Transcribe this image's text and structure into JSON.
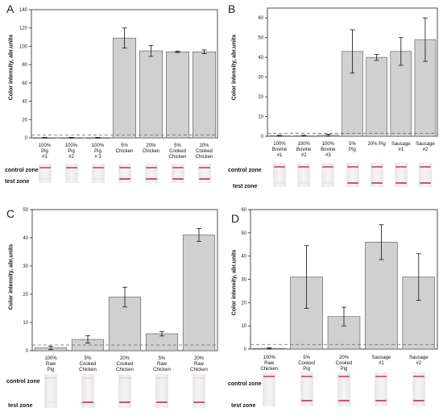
{
  "zone_labels": {
    "control": "control zone",
    "test": "test zone"
  },
  "colors": {
    "bar": "#d0d0d0",
    "bar_stroke": "#555555",
    "axis": "#222222",
    "dash": "#666666",
    "band": "#c24e6c"
  },
  "chart_data": [
    {
      "panel": "A",
      "type": "bar",
      "ylabel": "Color intensity, abr.units",
      "ylim": [
        0,
        140
      ],
      "yticks": [
        0,
        20,
        40,
        60,
        80,
        100,
        120,
        140
      ],
      "threshold": 3,
      "categories": [
        [
          "100%",
          "Pig",
          "#1"
        ],
        [
          "100%",
          "Pig",
          "#2"
        ],
        [
          "100%",
          "Pig",
          "# 3"
        ],
        [
          "5%",
          "Chicken"
        ],
        [
          "20%",
          "Chicken"
        ],
        [
          "5%",
          "Cooked",
          "Chicken"
        ],
        [
          "20%",
          "Cooked",
          "Chicken"
        ]
      ],
      "values": [
        0,
        0,
        0,
        109,
        95,
        94,
        94
      ],
      "errors": [
        0.5,
        0.5,
        0.5,
        11,
        6,
        0.8,
        2
      ],
      "strips": {
        "control": [
          1,
          1,
          1,
          1,
          1,
          1,
          1
        ],
        "test": [
          0,
          0,
          0,
          1,
          1,
          1,
          1
        ]
      }
    },
    {
      "panel": "B",
      "type": "bar",
      "ylabel": "Color intensity, abr.units",
      "ylim": [
        0,
        65
      ],
      "yticks": [
        0,
        10,
        20,
        30,
        40,
        50,
        60
      ],
      "threshold": 1.5,
      "categories": [
        [
          "100%",
          "Bovine",
          "#1"
        ],
        [
          "100%",
          "Bovine",
          "#2"
        ],
        [
          "100%",
          "Bovine",
          "#3"
        ],
        [
          "5%",
          "Pig"
        ],
        [
          "20% Pig"
        ],
        [
          "Sausage",
          "#1"
        ],
        [
          "Sausage",
          "#2"
        ]
      ],
      "values": [
        0.2,
        0.2,
        0.5,
        43,
        40,
        43,
        49
      ],
      "errors": [
        0.3,
        0.3,
        0.5,
        11,
        1.5,
        7,
        11
      ],
      "strips": {
        "control": [
          1,
          1,
          1,
          1,
          1,
          1,
          1
        ],
        "test": [
          0,
          0,
          0,
          1,
          1,
          1,
          1
        ]
      }
    },
    {
      "panel": "C",
      "type": "bar",
      "ylabel": "Color intensity, abr.units",
      "ylim": [
        0,
        50
      ],
      "yticks": [
        0,
        10,
        20,
        30,
        40,
        50
      ],
      "threshold": 2,
      "categories": [
        [
          "100%",
          "Raw",
          "Pig"
        ],
        [
          "5%",
          "Cooked",
          "Chicken"
        ],
        [
          "20%",
          "Cooked",
          "Chicken"
        ],
        [
          "5%",
          "Raw",
          "Chicken"
        ],
        [
          "20%",
          "Raw",
          "Chicken"
        ]
      ],
      "values": [
        1,
        4,
        19,
        6,
        41
      ],
      "errors": [
        0.6,
        1.3,
        3.5,
        0.8,
        2.3
      ],
      "strips": {
        "control": [
          0,
          0,
          0,
          0,
          0
        ],
        "test": [
          0,
          1,
          1,
          1,
          1
        ]
      }
    },
    {
      "panel": "D",
      "type": "bar",
      "ylabel": "Color intensity, abr.units",
      "ylim": [
        0,
        60
      ],
      "yticks": [
        0,
        10,
        20,
        30,
        40,
        50,
        60
      ],
      "threshold": 2,
      "categories": [
        [
          "100%",
          "Raw",
          "Chicken"
        ],
        [
          "5%",
          "Cooked",
          "Pig"
        ],
        [
          "20%",
          "Cooked",
          "Pig"
        ],
        [
          "Sausage",
          "#1"
        ],
        [
          "Sausage",
          "#2"
        ]
      ],
      "values": [
        0.3,
        31,
        14,
        46,
        31
      ],
      "errors": [
        0.3,
        13.5,
        4,
        7.5,
        10
      ],
      "strips": {
        "control": [
          1,
          1,
          1,
          1,
          1
        ],
        "test": [
          0,
          1,
          1,
          1,
          1
        ]
      }
    }
  ]
}
